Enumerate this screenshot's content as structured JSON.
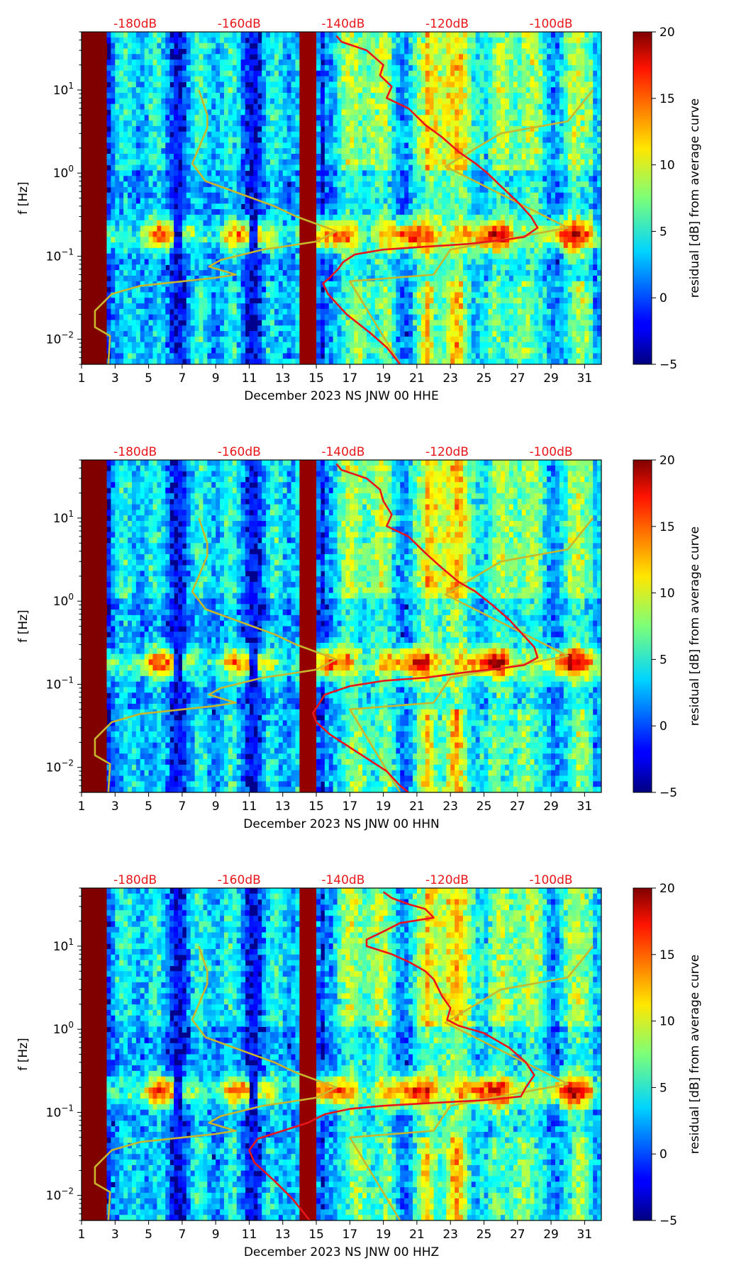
{
  "chart_data": [
    {
      "type": "heatmap",
      "xlabel": "December 2023 NS JNW 00 HHE",
      "ylabel": "f [Hz]",
      "x_range": [
        1,
        32
      ],
      "x_ticks": [
        "1",
        "3",
        "5",
        "7",
        "9",
        "11",
        "13",
        "15",
        "17",
        "19",
        "21",
        "23",
        "25",
        "27",
        "29",
        "31"
      ],
      "y_scale": "log",
      "y_range": [
        0.005,
        50
      ],
      "y_tick_values": [
        0.01,
        0.1,
        1,
        10
      ],
      "y_ticks": {
        "base": "10",
        "exps": [
          "−2",
          "−1",
          "0",
          "1"
        ]
      },
      "top_axis_labels": [
        "-180dB",
        "-160dB",
        "-140dB",
        "-120dB",
        "-100dB"
      ],
      "top_axis_positions": [
        4.2,
        10.4,
        16.6,
        22.8,
        29.0
      ],
      "colorbar": {
        "label": "residual [dB] from average curve",
        "range": [
          -5,
          20
        ],
        "ticks": [
          "20",
          "15",
          "10",
          "5",
          "0",
          "−5"
        ]
      },
      "red_curve": {
        "color": "#e8161a",
        "points": [
          [
            16.2,
            45
          ],
          [
            16.5,
            38
          ],
          [
            18,
            30
          ],
          [
            19,
            20
          ],
          [
            18.8,
            15
          ],
          [
            19.5,
            11
          ],
          [
            19.2,
            8
          ],
          [
            20.5,
            6
          ],
          [
            21.5,
            3.8
          ],
          [
            22.5,
            2.7
          ],
          [
            23.5,
            1.8
          ],
          [
            24.5,
            1.3
          ],
          [
            25.2,
            1.0
          ],
          [
            26,
            0.7
          ],
          [
            27,
            0.45
          ],
          [
            27.8,
            0.3
          ],
          [
            28.2,
            0.22
          ],
          [
            27.4,
            0.17
          ],
          [
            26,
            0.155
          ],
          [
            24,
            0.14
          ],
          [
            21.5,
            0.13
          ],
          [
            19,
            0.12
          ],
          [
            17.3,
            0.105
          ],
          [
            16.6,
            0.085
          ],
          [
            16.3,
            0.07
          ],
          [
            15.8,
            0.055
          ],
          [
            15.4,
            0.047
          ],
          [
            15.7,
            0.035
          ],
          [
            16.8,
            0.02
          ],
          [
            18.2,
            0.012
          ],
          [
            19.2,
            0.008
          ],
          [
            20,
            0.005
          ]
        ]
      },
      "yellow_curve": {
        "color": "#c8b72c",
        "points": [
          [
            8,
            10
          ],
          [
            8.5,
            5
          ],
          [
            8.5,
            3.5
          ],
          [
            7.6,
            1.3
          ],
          [
            8.4,
            0.8
          ],
          [
            12.5,
            0.4
          ],
          [
            13.8,
            0.3
          ],
          [
            16.2,
            0.2
          ],
          [
            15,
            0.15
          ],
          [
            13,
            0.13
          ],
          [
            11.8,
            0.12
          ],
          [
            9.3,
            0.09
          ],
          [
            8.6,
            0.075
          ],
          [
            10.2,
            0.06
          ],
          [
            9,
            0.055
          ],
          [
            4.5,
            0.044
          ],
          [
            2.8,
            0.035
          ],
          [
            1.8,
            0.022
          ],
          [
            1.8,
            0.014
          ],
          [
            2.7,
            0.011
          ],
          [
            2.6,
            0.005
          ]
        ]
      },
      "yellow_curve_right": {
        "points": [
          [
            31.5,
            10
          ],
          [
            30,
            4.2
          ],
          [
            26,
            3
          ],
          [
            22.7,
            1.2
          ],
          [
            30,
            0.22
          ],
          [
            23,
            0.12
          ],
          [
            22,
            0.06
          ],
          [
            17,
            0.05
          ],
          [
            20,
            0.005
          ]
        ]
      }
    },
    {
      "type": "heatmap",
      "xlabel": "December 2023 NS JNW 00 HHN",
      "ylabel": "f [Hz]",
      "x_range": [
        1,
        32
      ],
      "x_ticks": [
        "1",
        "3",
        "5",
        "7",
        "9",
        "11",
        "13",
        "15",
        "17",
        "19",
        "21",
        "23",
        "25",
        "27",
        "29",
        "31"
      ],
      "y_scale": "log",
      "y_range": [
        0.005,
        50
      ],
      "y_tick_values": [
        0.01,
        0.1,
        1,
        10
      ],
      "y_ticks": {
        "base": "10",
        "exps": [
          "−2",
          "−1",
          "0",
          "1"
        ]
      },
      "top_axis_labels": [
        "-180dB",
        "-160dB",
        "-140dB",
        "-120dB",
        "-100dB"
      ],
      "top_axis_positions": [
        4.2,
        10.4,
        16.6,
        22.8,
        29.0
      ],
      "colorbar": {
        "label": "residual [dB] from average curve",
        "range": [
          -5,
          20
        ],
        "ticks": [
          "20",
          "15",
          "10",
          "5",
          "0",
          "−5"
        ]
      },
      "red_curve": {
        "color": "#e8161a",
        "points": [
          [
            16.2,
            45
          ],
          [
            16.5,
            38
          ],
          [
            18,
            30
          ],
          [
            18.8,
            22
          ],
          [
            19,
            16
          ],
          [
            19.5,
            11
          ],
          [
            19.2,
            8
          ],
          [
            20.5,
            6
          ],
          [
            21.5,
            3.8
          ],
          [
            22.5,
            2.5
          ],
          [
            23.5,
            1.7
          ],
          [
            24.5,
            1.3
          ],
          [
            25.5,
            0.9
          ],
          [
            26.5,
            0.6
          ],
          [
            27.3,
            0.4
          ],
          [
            28,
            0.28
          ],
          [
            28.2,
            0.21
          ],
          [
            27.4,
            0.17
          ],
          [
            26,
            0.155
          ],
          [
            24,
            0.14
          ],
          [
            21.5,
            0.12
          ],
          [
            19,
            0.11
          ],
          [
            17,
            0.095
          ],
          [
            15.5,
            0.075
          ],
          [
            15.2,
            0.06
          ],
          [
            14.8,
            0.045
          ],
          [
            15,
            0.035
          ],
          [
            15.8,
            0.025
          ],
          [
            17.5,
            0.015
          ],
          [
            19.2,
            0.009
          ],
          [
            20,
            0.006
          ],
          [
            20.5,
            0.005
          ]
        ]
      },
      "yellow_curve": {
        "color": "#c8b72c",
        "points": [
          [
            8,
            10
          ],
          [
            8.5,
            5
          ],
          [
            8.5,
            3.5
          ],
          [
            7.6,
            1.3
          ],
          [
            8.4,
            0.8
          ],
          [
            12.5,
            0.4
          ],
          [
            13.8,
            0.3
          ],
          [
            16.2,
            0.2
          ],
          [
            15,
            0.15
          ],
          [
            13,
            0.13
          ],
          [
            11.8,
            0.12
          ],
          [
            9.3,
            0.09
          ],
          [
            8.6,
            0.075
          ],
          [
            10.2,
            0.06
          ],
          [
            9,
            0.055
          ],
          [
            4.5,
            0.044
          ],
          [
            2.8,
            0.035
          ],
          [
            1.8,
            0.022
          ],
          [
            1.8,
            0.014
          ],
          [
            2.7,
            0.011
          ],
          [
            2.6,
            0.005
          ]
        ]
      },
      "yellow_curve_right": {
        "points": [
          [
            31.5,
            10
          ],
          [
            30,
            4.2
          ],
          [
            26,
            3
          ],
          [
            22.7,
            1.2
          ],
          [
            30,
            0.22
          ],
          [
            23,
            0.12
          ],
          [
            22,
            0.06
          ],
          [
            17,
            0.05
          ],
          [
            20,
            0.005
          ]
        ]
      }
    },
    {
      "type": "heatmap",
      "xlabel": "December 2023 NS JNW 00 HHZ",
      "ylabel": "f [Hz]",
      "x_range": [
        1,
        32
      ],
      "x_ticks": [
        "1",
        "3",
        "5",
        "7",
        "9",
        "11",
        "13",
        "15",
        "17",
        "19",
        "21",
        "23",
        "25",
        "27",
        "29",
        "31"
      ],
      "y_scale": "log",
      "y_range": [
        0.005,
        50
      ],
      "y_tick_values": [
        0.01,
        0.1,
        1,
        10
      ],
      "y_ticks": {
        "base": "10",
        "exps": [
          "−2",
          "−1",
          "0",
          "1"
        ]
      },
      "top_axis_labels": [
        "-180dB",
        "-160dB",
        "-140dB",
        "-120dB",
        "-100dB"
      ],
      "top_axis_positions": [
        4.2,
        10.4,
        16.6,
        22.8,
        29.0
      ],
      "colorbar": {
        "label": "residual [dB] from average curve",
        "range": [
          -5,
          20
        ],
        "ticks": [
          "20",
          "15",
          "10",
          "5",
          "0",
          "−5"
        ]
      },
      "red_curve": {
        "color": "#e8161a",
        "points": [
          [
            19,
            45
          ],
          [
            19.5,
            38
          ],
          [
            20.5,
            32
          ],
          [
            21.5,
            28
          ],
          [
            22,
            22
          ],
          [
            20,
            19
          ],
          [
            19,
            15
          ],
          [
            18,
            12
          ],
          [
            18,
            10
          ],
          [
            19.5,
            8
          ],
          [
            20.5,
            6.5
          ],
          [
            21.5,
            5
          ],
          [
            22,
            4
          ],
          [
            22.5,
            2.5
          ],
          [
            23,
            1.8
          ],
          [
            22.8,
            1.3
          ],
          [
            23.5,
            1.1
          ],
          [
            25,
            0.9
          ],
          [
            26.5,
            0.6
          ],
          [
            27.5,
            0.4
          ],
          [
            28,
            0.28
          ],
          [
            27.5,
            0.2
          ],
          [
            27.2,
            0.155
          ],
          [
            25,
            0.14
          ],
          [
            22,
            0.13
          ],
          [
            19,
            0.12
          ],
          [
            17,
            0.11
          ],
          [
            15.5,
            0.095
          ],
          [
            14.5,
            0.075
          ],
          [
            13,
            0.06
          ],
          [
            11.5,
            0.048
          ],
          [
            11,
            0.035
          ],
          [
            11.3,
            0.025
          ],
          [
            12.5,
            0.015
          ],
          [
            13.6,
            0.009
          ],
          [
            14.3,
            0.006
          ],
          [
            14.6,
            0.005
          ]
        ]
      },
      "yellow_curve": {
        "color": "#c8b72c",
        "points": [
          [
            8,
            10
          ],
          [
            8.5,
            5
          ],
          [
            8.5,
            3.5
          ],
          [
            7.6,
            1.3
          ],
          [
            8.4,
            0.8
          ],
          [
            12.5,
            0.4
          ],
          [
            13.8,
            0.3
          ],
          [
            16.2,
            0.2
          ],
          [
            15,
            0.15
          ],
          [
            13,
            0.13
          ],
          [
            11.8,
            0.12
          ],
          [
            9.3,
            0.09
          ],
          [
            8.6,
            0.075
          ],
          [
            10.2,
            0.06
          ],
          [
            9,
            0.055
          ],
          [
            4.5,
            0.044
          ],
          [
            2.8,
            0.035
          ],
          [
            1.8,
            0.022
          ],
          [
            1.8,
            0.014
          ],
          [
            2.7,
            0.011
          ],
          [
            2.6,
            0.005
          ]
        ]
      },
      "yellow_curve_right": {
        "points": [
          [
            31.5,
            10
          ],
          [
            30,
            4.2
          ],
          [
            26,
            3
          ],
          [
            22.7,
            1.2
          ],
          [
            30,
            0.22
          ],
          [
            23,
            0.12
          ],
          [
            22,
            0.06
          ],
          [
            17,
            0.05
          ],
          [
            20,
            0.005
          ]
        ]
      }
    }
  ],
  "colors": {
    "top_db_label": "#e8161a",
    "red_curve": "#e8161a",
    "yellow_curve": "#c8b72c"
  }
}
